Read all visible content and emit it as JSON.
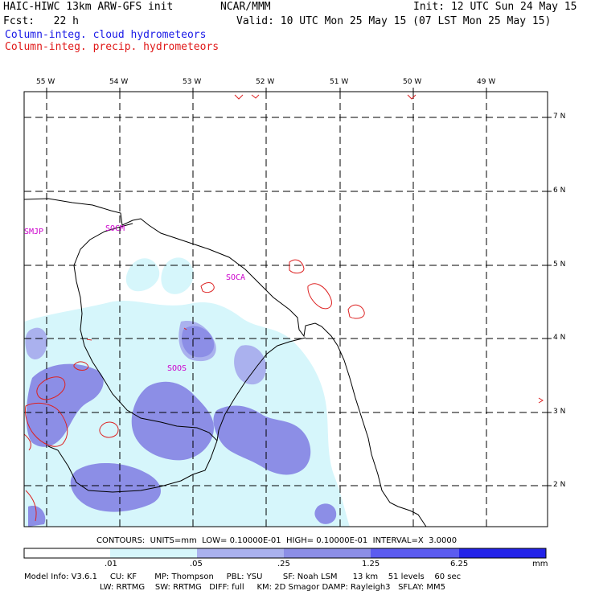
{
  "header": {
    "model_title": "HAIC-HIWC 13km ARW-GFS init",
    "org": "NCAR/MMM",
    "init_time": "Init: 12 UTC Sun 24 May 15",
    "forecast_hour": "Fcst:   22 h",
    "valid_time": "Valid: 10 UTC Mon 25 May 15 (07 LST Mon 25 May 15)",
    "field_cloud": "Column-integ. cloud hydrometeors",
    "field_precip": "Column-integ. precip. hydrometeors"
  },
  "map": {
    "lon_labels": [
      "55 W",
      "54 W",
      "53 W",
      "52 W",
      "51 W",
      "50 W",
      "49 W"
    ],
    "lat_labels": [
      "7 N",
      "6 N",
      "5 N",
      "4 N",
      "3 N",
      "2 N"
    ],
    "stations": [
      "SMJP",
      "SOCM",
      "SOCA",
      "SOOS"
    ],
    "colors": {
      "coast": "#000000",
      "grid": "#000000",
      "cloud_light": "#d6f6fb",
      "cloud_mid": "#aab1ee",
      "cloud_dark": "#8c8ee6",
      "precip_contour": "#dd2222"
    }
  },
  "contours_info": "CONTOURS:  UNITS=mm  LOW= 0.10000E-01  HIGH= 0.10000E-01  INTERVAL=X  3.0000",
  "colorbar": {
    "ticks": [
      ".01",
      ".05",
      ".25",
      "1.25",
      "6.25"
    ],
    "unit": "mm",
    "colors": [
      "#ffffff",
      "#d6f6fb",
      "#aab1ee",
      "#8c8ee6",
      "#5b5bef",
      "#2323e8"
    ]
  },
  "model_info": {
    "line1": "Model Info: V3.6.1     CU: KF       MP: Thompson     PBL: YSU        SF: Noah LSM      13 km    51 levels    60 sec",
    "line2": "LW: RRTMG    SW: RRTMG   DIFF: full     KM: 2D Smagor DAMP: Rayleigh3   SFLAY: MM5"
  }
}
